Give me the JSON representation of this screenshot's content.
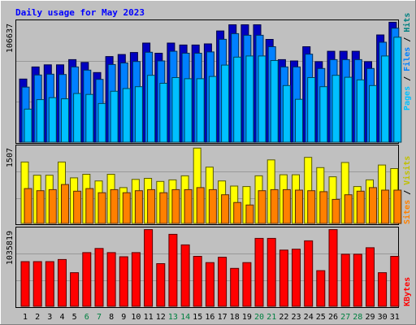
{
  "chart_data": {
    "type": "bar",
    "title": "Daily usage for May 2023",
    "x": [
      "1",
      "2",
      "3",
      "4",
      "5",
      "6",
      "7",
      "8",
      "9",
      "10",
      "11",
      "12",
      "13",
      "14",
      "15",
      "16",
      "17",
      "18",
      "19",
      "20",
      "21",
      "22",
      "23",
      "24",
      "25",
      "26",
      "27",
      "28",
      "29",
      "30",
      "31"
    ],
    "weekend_days": [
      "6",
      "7",
      "13",
      "14",
      "20",
      "21",
      "27",
      "28"
    ],
    "grid": true,
    "panels": [
      {
        "id": "hits-files-pages",
        "ymax_label": "106637",
        "ymax": 106637,
        "legend": [
          "Pages",
          "Files",
          "Hits"
        ],
        "series": [
          {
            "name": "Hits",
            "color": "#0000c0",
            "values": [
              55600,
              66300,
              68100,
              68100,
              72700,
              70300,
              61300,
              75400,
              77200,
              79000,
              87300,
              78400,
              87300,
              85600,
              85600,
              86600,
              98000,
              103400,
              103400,
              103400,
              90500,
              72700,
              71600,
              84100,
              70900,
              80100,
              80100,
              80100,
              70900,
              94500,
              105600
            ]
          },
          {
            "name": "Files",
            "color": "#0080ff",
            "values": [
              48500,
              59200,
              59900,
              59600,
              66300,
              63500,
              55300,
              68400,
              69800,
              71100,
              79200,
              71600,
              80100,
              78400,
              78400,
              79500,
              90600,
              95600,
              94200,
              94200,
              84100,
              66300,
              66300,
              77500,
              64900,
              72700,
              72700,
              72700,
              64900,
              88000,
              100400
            ]
          },
          {
            "name": "Pages",
            "color": "#00c0ff",
            "values": [
              29100,
              37500,
              39200,
              38200,
              42900,
              42100,
              34100,
              44900,
              47200,
              48900,
              58900,
              51900,
              56900,
              55900,
              55900,
              57900,
              67900,
              74900,
              75900,
              75900,
              71900,
              49900,
              37800,
              56900,
              48900,
              58900,
              57200,
              54900,
              49900,
              75900,
              92500
            ]
          }
        ]
      },
      {
        "id": "visits-sites",
        "ymax_label": "1507",
        "ymax": 1507,
        "legend": [
          "Sites",
          "Visits"
        ],
        "series": [
          {
            "name": "Visits",
            "color": "#ffff00",
            "values": [
              1200,
              940,
              940,
              1200,
              890,
              960,
              830,
              960,
              700,
              860,
              880,
              820,
              850,
              930,
              1470,
              1100,
              830,
              730,
              720,
              930,
              1240,
              950,
              950,
              1290,
              1090,
              910,
              1190,
              720,
              850,
              1140,
              1070
            ]
          },
          {
            "name": "Sites",
            "color": "#ff8000",
            "values": [
              680,
              640,
              660,
              760,
              630,
              680,
              600,
              660,
              600,
              640,
              660,
              600,
              660,
              660,
              700,
              660,
              560,
              410,
              360,
              640,
              660,
              660,
              650,
              640,
              620,
              470,
              560,
              630,
              700,
              650,
              650
            ]
          }
        ]
      },
      {
        "id": "kbytes",
        "ymax_label": "1035819",
        "ymax": 1035819,
        "legend": [
          "KBytes"
        ],
        "series": [
          {
            "name": "KBytes",
            "color": "#ff0000",
            "values": [
              593000,
              593000,
              593000,
              621000,
              447000,
              713000,
              768000,
              713000,
              658000,
              713000,
              1019000,
              567000,
              956000,
              816000,
              664000,
              580000,
              652000,
              504000,
              580000,
              902000,
              902000,
              747000,
              758000,
              870000,
              474000,
              1019000,
              692000,
              692000,
              778000,
              447000,
              664000
            ]
          }
        ]
      }
    ]
  }
}
